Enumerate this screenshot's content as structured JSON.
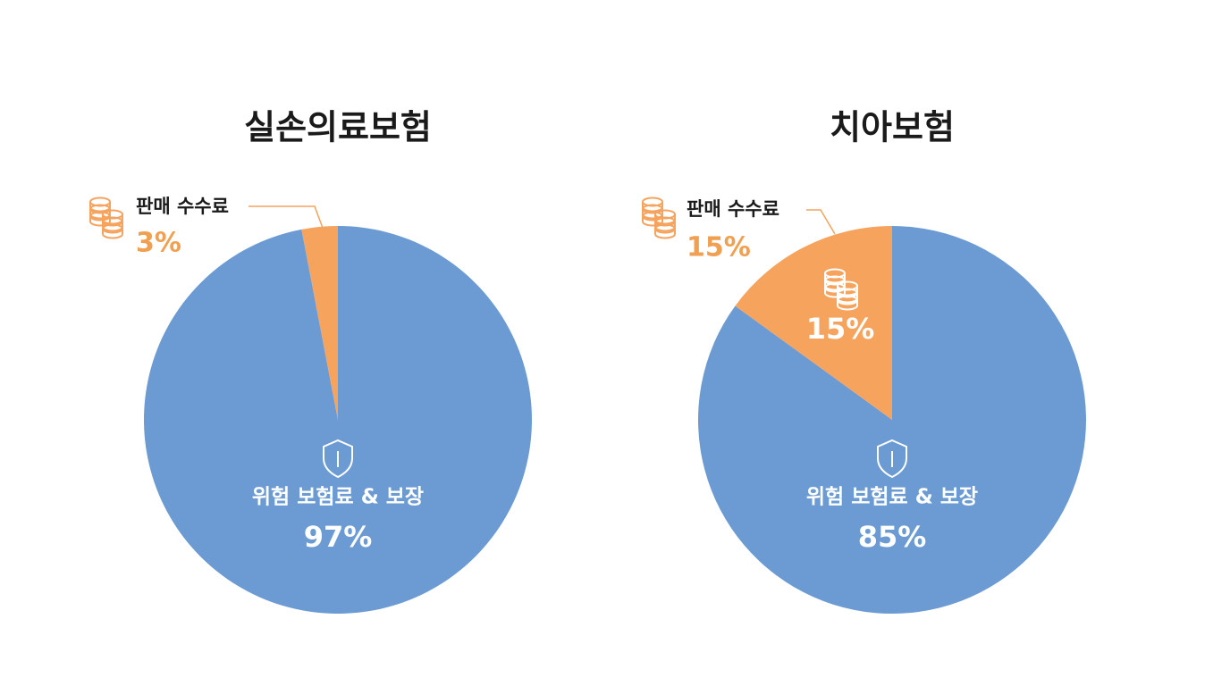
{
  "chart_data": [
    {
      "type": "pie",
      "title": "실손의료보험",
      "categories": [
        "위험 보험료 & 보장",
        "판매 수수료"
      ],
      "values": [
        97,
        3
      ],
      "value_labels": [
        "97%",
        "3%"
      ],
      "colors": [
        "#6b9bd2",
        "#f6a35e"
      ]
    },
    {
      "type": "pie",
      "title": "치아보험",
      "categories": [
        "위험 보험료 & 보장",
        "판매 수수료"
      ],
      "values": [
        85,
        15
      ],
      "value_labels": [
        "85%",
        "15%"
      ],
      "colors": [
        "#6b9bd2",
        "#f6a35e"
      ]
    }
  ]
}
